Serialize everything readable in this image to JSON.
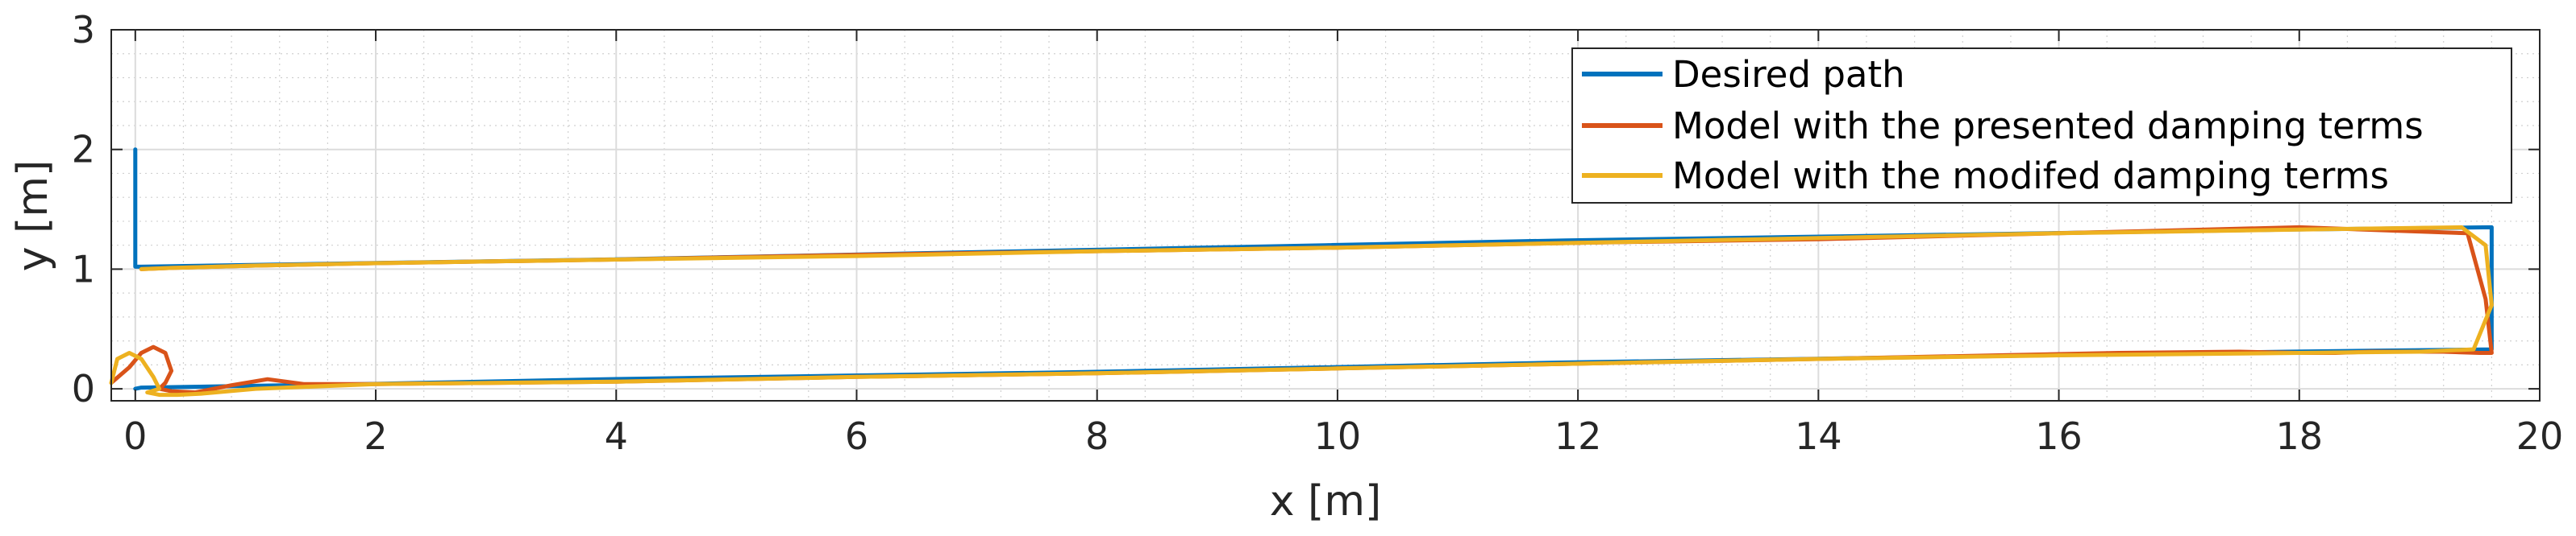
{
  "chart_data": {
    "type": "line",
    "xlabel": "x [m]",
    "ylabel": "y [m]",
    "xlim": [
      -0.2,
      20
    ],
    "ylim": [
      -0.1,
      3
    ],
    "x_ticks": [
      0,
      2,
      4,
      6,
      8,
      10,
      12,
      14,
      16,
      18,
      20
    ],
    "y_ticks": [
      0,
      1,
      2,
      3
    ],
    "grid": true,
    "minor_grid": true,
    "legend_position": "top-right",
    "series": [
      {
        "name": "Desired path",
        "color": "#0072BD",
        "x": [
          0.0,
          0.0,
          0.0,
          0.05,
          1.9,
          3.9,
          5.9,
          7.9,
          9.9,
          11.9,
          13.9,
          15.9,
          17.9,
          19.6,
          19.6,
          19.6,
          17.9,
          15.9,
          13.9,
          11.9,
          9.9,
          7.9,
          5.9,
          3.9,
          1.9,
          0.05,
          0.0
        ],
        "y": [
          2.0,
          1.5,
          1.02,
          1.02,
          1.05,
          1.08,
          1.12,
          1.16,
          1.2,
          1.24,
          1.27,
          1.3,
          1.33,
          1.35,
          0.8,
          0.33,
          0.31,
          0.28,
          0.25,
          0.22,
          0.18,
          0.14,
          0.11,
          0.08,
          0.04,
          0.01,
          0.0
        ]
      },
      {
        "name": "Model with the presented damping terms",
        "color": "#D95319",
        "x": [
          -0.2,
          -0.05,
          0.05,
          0.15,
          0.25,
          0.3,
          0.25,
          0.2,
          0.3,
          0.5,
          0.8,
          1.1,
          1.4,
          2.0,
          4.0,
          6.0,
          8.0,
          10.0,
          12.0,
          14.0,
          15.5,
          16.5,
          17.5,
          18.0,
          18.3,
          18.6,
          18.9,
          19.2,
          19.5,
          19.6,
          19.55,
          19.4,
          18.0,
          16.0,
          14.0,
          12.0,
          10.0,
          8.0,
          6.0,
          4.0,
          2.0,
          1.0,
          0.3,
          0.05
        ],
        "y": [
          0.05,
          0.18,
          0.3,
          0.35,
          0.3,
          0.15,
          0.05,
          0.0,
          -0.02,
          -0.03,
          0.03,
          0.08,
          0.04,
          0.04,
          0.06,
          0.1,
          0.13,
          0.17,
          0.21,
          0.25,
          0.28,
          0.3,
          0.31,
          0.3,
          0.3,
          0.31,
          0.31,
          0.31,
          0.3,
          0.3,
          0.75,
          1.3,
          1.35,
          1.3,
          1.25,
          1.22,
          1.18,
          1.15,
          1.12,
          1.08,
          1.05,
          1.03,
          1.01,
          1.0
        ]
      },
      {
        "name": "Model with the modifed damping terms",
        "color": "#EDB120",
        "x": [
          -0.2,
          -0.15,
          -0.05,
          0.05,
          0.15,
          0.2,
          0.1,
          0.2,
          0.35,
          0.55,
          1.0,
          2.0,
          4.0,
          6.0,
          8.0,
          10.0,
          12.0,
          14.0,
          16.0,
          18.0,
          19.0,
          19.45,
          19.6,
          19.55,
          19.35,
          18.0,
          16.0,
          14.0,
          12.0,
          10.0,
          8.0,
          6.0,
          4.0,
          2.0,
          1.0,
          0.3,
          0.05
        ],
        "y": [
          0.05,
          0.25,
          0.3,
          0.25,
          0.1,
          0.0,
          -0.03,
          -0.05,
          -0.05,
          -0.04,
          0.0,
          0.04,
          0.06,
          0.1,
          0.13,
          0.17,
          0.21,
          0.25,
          0.28,
          0.3,
          0.31,
          0.33,
          0.7,
          1.2,
          1.35,
          1.33,
          1.3,
          1.26,
          1.22,
          1.18,
          1.15,
          1.11,
          1.08,
          1.05,
          1.03,
          1.01,
          1.0
        ]
      }
    ]
  }
}
